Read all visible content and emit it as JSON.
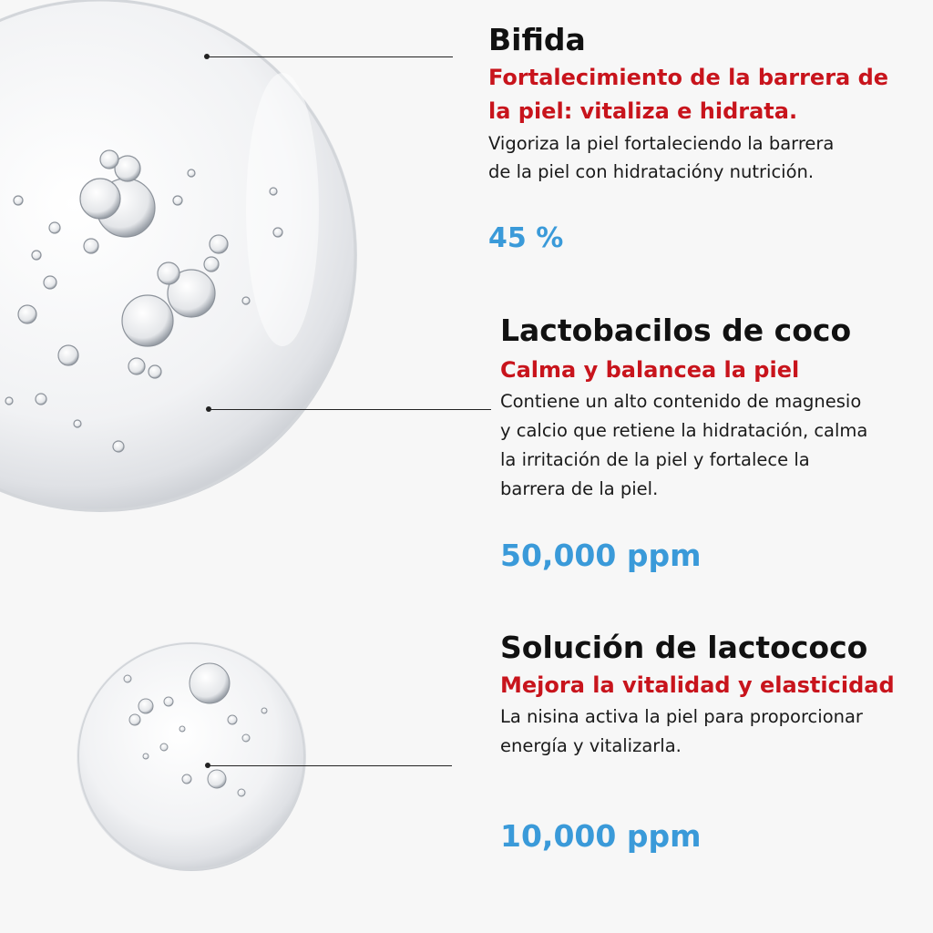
{
  "ingredients": [
    {
      "title": "Bifida",
      "subtitle_lines": [
        "Fortalecimiento de la barrera de",
        "la piel: vitaliza e hidrata."
      ],
      "description_lines": [
        "Vigoriza la piel fortaleciendo la barrera",
        "de la piel con hidratacióny nutrición."
      ],
      "value": "45 %"
    },
    {
      "title": "Lactobacilos de coco",
      "subtitle_lines": [
        "Calma y balancea la piel"
      ],
      "description_lines": [
        "Contiene un alto contenido de magnesio",
        "y calcio que retiene la hidratación, calma",
        "la irritación de la piel y fortalece la",
        "barrera de la piel."
      ],
      "value": "50,000 ppm"
    },
    {
      "title": "Solución de lactococo",
      "subtitle_lines": [
        "Mejora la vitalidad y elasticidad"
      ],
      "description_lines": [
        "La nisina activa la piel para proporcionar",
        "energía y vitalizarla."
      ],
      "value": "10,000 ppm"
    }
  ],
  "colors": {
    "title": "#111111",
    "subtitle": "#c8141c",
    "value": "#3a9ad9",
    "background": "#f7f7f7"
  }
}
